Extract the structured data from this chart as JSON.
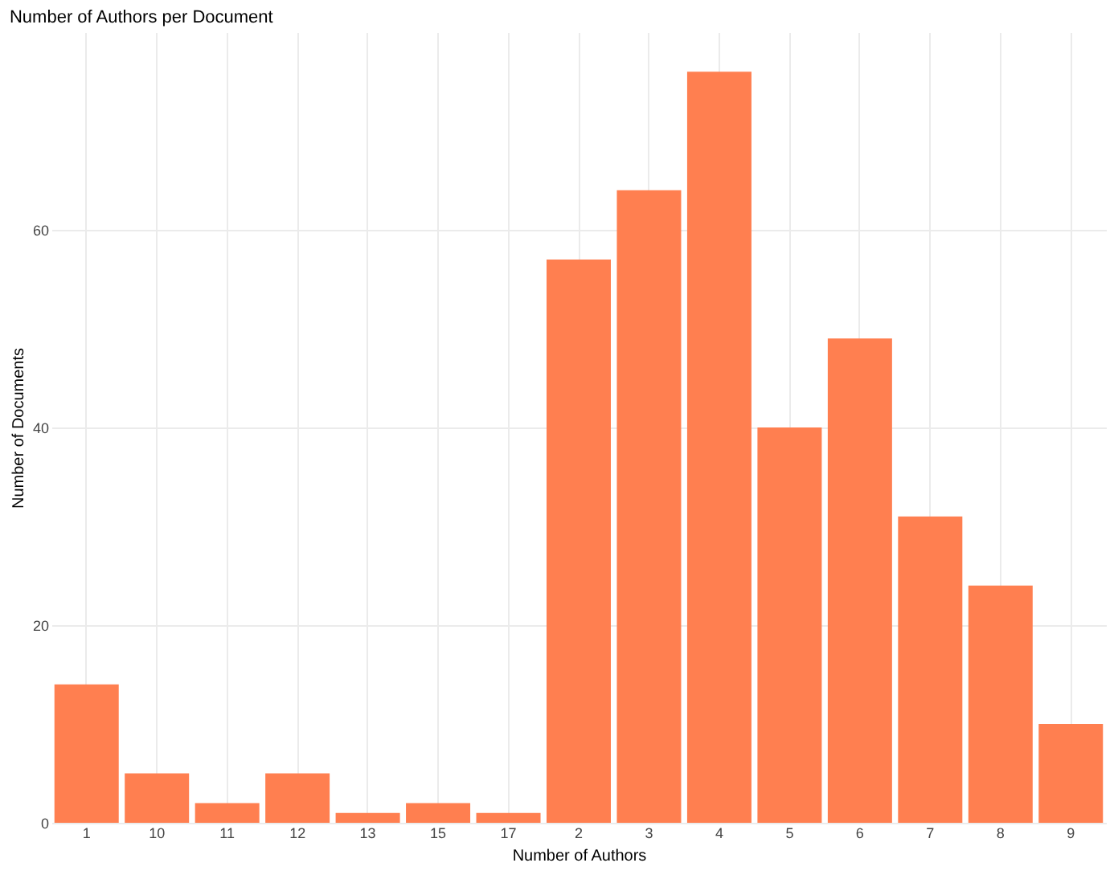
{
  "chart_data": {
    "type": "bar",
    "title": "Number of Authors per Document",
    "xlabel": "Number of Authors",
    "ylabel": "Number of Documents",
    "categories": [
      "1",
      "10",
      "11",
      "12",
      "13",
      "15",
      "17",
      "2",
      "3",
      "4",
      "5",
      "6",
      "7",
      "8",
      "9"
    ],
    "values": [
      14,
      5,
      2,
      5,
      1,
      2,
      1,
      57,
      64,
      76,
      40,
      49,
      31,
      24,
      10
    ],
    "color": "#ff7f50",
    "ylim": [
      0,
      80
    ],
    "yticks": [
      0,
      20,
      40,
      60
    ],
    "grid": true
  }
}
